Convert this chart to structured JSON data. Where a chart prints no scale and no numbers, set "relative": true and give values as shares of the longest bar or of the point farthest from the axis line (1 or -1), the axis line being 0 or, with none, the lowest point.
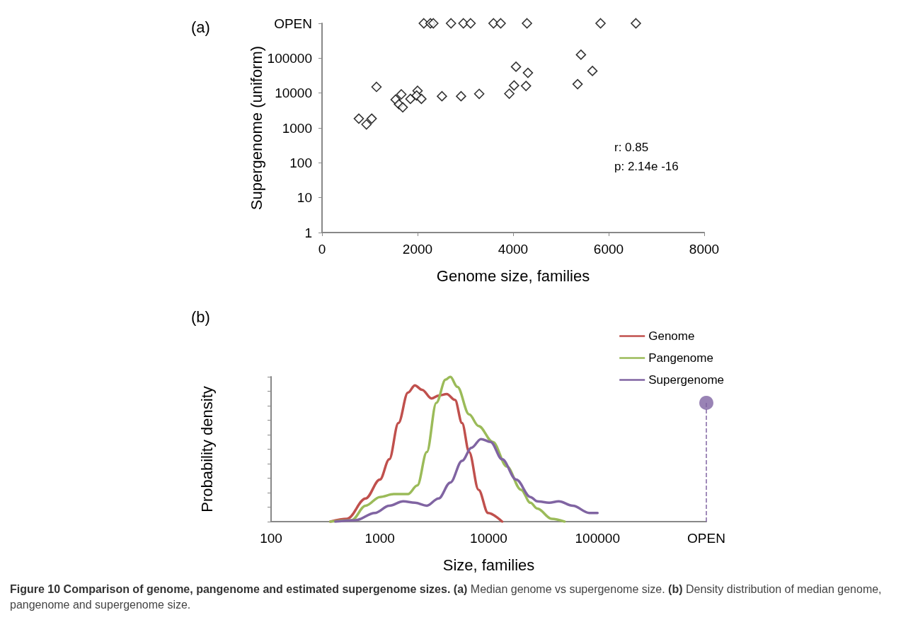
{
  "chart_data": [
    {
      "type": "scatter",
      "title": "(a)",
      "xlabel": "Genome size, families",
      "ylabel": "Supergenome (uniform)",
      "marker": "diamond",
      "log": "y",
      "xlim": [
        0,
        8000
      ],
      "xticks": [
        0,
        2000,
        4000,
        6000,
        8000
      ],
      "ylim": [
        1,
        1000000
      ],
      "yticks": [
        1,
        10,
        100,
        1000,
        10000,
        100000,
        {
          "value": 1000000,
          "label": "OPEN"
        }
      ],
      "annotations": [
        "r: 0.85",
        "p: 2.14e -16"
      ],
      "series": [
        {
          "color": "#000000",
          "x": [
            2130,
            2270,
            2330,
            2700,
            2960,
            3110,
            3590,
            3740,
            4290,
            5830,
            6570,
            770,
            930,
            1040,
            1140,
            1540,
            1610,
            1660,
            1690,
            1850,
            2000,
            1980,
            2080,
            2510,
            2910,
            3290,
            3920,
            4020,
            4060,
            4270,
            4310,
            5350,
            5420,
            5660
          ],
          "values": [
            1000000,
            1000000,
            1000000,
            1000000,
            1000000,
            1000000,
            1000000,
            1000000,
            1000000,
            1000000,
            1000000,
            1850,
            1260,
            1850,
            15000,
            6500,
            4800,
            9200,
            3900,
            6800,
            11600,
            8500,
            6800,
            8100,
            8100,
            9500,
            9600,
            16500,
            57000,
            16000,
            38000,
            18000,
            126000,
            43000
          ]
        }
      ]
    },
    {
      "type": "line",
      "title": "(b)",
      "xlabel": "Size, families",
      "ylabel": "Probability density",
      "relative": true,
      "log": "x",
      "legend": "top right",
      "xlim": [
        100,
        1000000
      ],
      "xticks": [
        100,
        1000,
        10000,
        100000,
        {
          "value": 1000000,
          "label": "OPEN"
        }
      ],
      "annotations": [
        "Figure 10 Comparison of genome, pangenome and estimated supergenome sizes.",
        "(a)",
        "Median genome vs supergenome size.",
        "(b)",
        "Density distribution of median genome, pangenome and supergenome size."
      ],
      "series": [
        {
          "name": "Genome",
          "color": "#c0504d",
          "x": [
            350,
            500,
            740,
            1000,
            1220,
            1480,
            1810,
            2100,
            2440,
            2980,
            3460,
            4120,
            4900,
            5690,
            6610,
            8070,
            9860,
            13300
          ],
          "values": [
            0,
            0.02,
            0.16,
            0.29,
            0.43,
            0.68,
            0.89,
            0.94,
            0.91,
            0.85,
            0.87,
            0.88,
            0.84,
            0.68,
            0.48,
            0.22,
            0.06,
            0
          ]
        },
        {
          "name": "Pangenome",
          "color": "#9bbb59",
          "x": [
            350,
            550,
            740,
            1000,
            1340,
            1810,
            2210,
            2700,
            3300,
            4020,
            4440,
            5150,
            6610,
            8070,
            10900,
            14700,
            19800,
            24200,
            28000,
            37800,
            49800
          ],
          "values": [
            0,
            0.01,
            0.11,
            0.17,
            0.19,
            0.19,
            0.25,
            0.48,
            0.82,
            0.98,
            1,
            0.93,
            0.74,
            0.66,
            0.55,
            0.38,
            0.22,
            0.13,
            0.09,
            0.02,
            0
          ]
        },
        {
          "name": "Supergenome",
          "color": "#8064a2",
          "x": [
            390,
            600,
            900,
            1220,
            1640,
            2100,
            2700,
            3460,
            4440,
            5690,
            6950,
            8490,
            10400,
            13300,
            17900,
            24200,
            28000,
            36000,
            44000,
            59300,
            84000,
            100000
          ],
          "values": [
            0,
            0.01,
            0.06,
            0.11,
            0.14,
            0.13,
            0.11,
            0.16,
            0.27,
            0.42,
            0.51,
            0.57,
            0.55,
            0.43,
            0.29,
            0.17,
            0.14,
            0.13,
            0.14,
            0.11,
            0.06,
            0.06
          ]
        },
        {
          "type": "lollipop",
          "color": "#8064a2",
          "line_style": "dashed",
          "x": [
            1000000
          ],
          "values": [
            0.82
          ]
        }
      ]
    }
  ]
}
